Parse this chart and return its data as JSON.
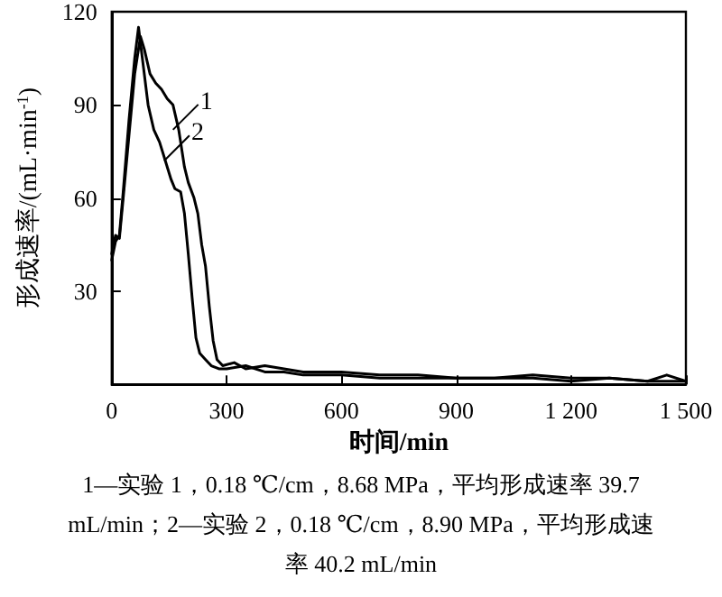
{
  "chart_data": {
    "type": "line",
    "xlabel": "时间/min",
    "ylabel": "形成速率/(mL·min$^{-1}$)",
    "xlim": [
      0,
      1500
    ],
    "xticks": [
      0,
      300,
      600,
      900,
      {
        "value": 1200,
        "label": "1 200"
      },
      {
        "value": 1500,
        "label": "1 500"
      }
    ],
    "ylim": [
      0,
      120
    ],
    "yticks": [
      30,
      60,
      90,
      120
    ],
    "grid": false,
    "marker": "none",
    "line_style": "solid",
    "series": [
      {
        "color": "#000000",
        "x": [
          0,
          10,
          20,
          30,
          45,
          60,
          75,
          85,
          100,
          115,
          130,
          145,
          160,
          175,
          190,
          200,
          215,
          225,
          235,
          245,
          255,
          265,
          275,
          290,
          320,
          350,
          400,
          450,
          500,
          550,
          600,
          700,
          800,
          900,
          1000,
          1100,
          1200,
          1300,
          1400,
          1450,
          1500
        ],
        "values": [
          42,
          48,
          47,
          60,
          80,
          100,
          112,
          108,
          100,
          97,
          95,
          92,
          90,
          82,
          70,
          65,
          60,
          55,
          45,
          38,
          25,
          14,
          8,
          6,
          7,
          5,
          6,
          5,
          4,
          4,
          4,
          3,
          3,
          2,
          2,
          3,
          2,
          2,
          1,
          3,
          1
        ]
      },
      {
        "color": "#000000",
        "x": [
          0,
          10,
          20,
          30,
          45,
          60,
          70,
          80,
          95,
          110,
          125,
          140,
          155,
          165,
          180,
          190,
          200,
          210,
          220,
          230,
          245,
          260,
          280,
          300,
          350,
          400,
          450,
          500,
          600,
          700,
          800,
          900,
          1000,
          1100,
          1200,
          1300,
          1400,
          1500
        ],
        "values": [
          40,
          46,
          48,
          62,
          85,
          105,
          115,
          105,
          90,
          82,
          78,
          72,
          66,
          63,
          62,
          55,
          42,
          28,
          15,
          10,
          8,
          6,
          5,
          5,
          6,
          4,
          4,
          3,
          3,
          2,
          2,
          2,
          2,
          2,
          1,
          2,
          1,
          1
        ]
      }
    ],
    "annotations": [
      {
        "text": "1",
        "x": 160,
        "y": 82
      },
      {
        "text": "2",
        "x": 137,
        "y": 72
      },
      "1—实验 1，0.18 ℃/cm，8.68 MPa，平均形成速率 39.7 mL/min；2—实验 2，0.18 ℃/cm，8.90 MPa，平均形成速率 40.2 mL/min"
    ]
  }
}
